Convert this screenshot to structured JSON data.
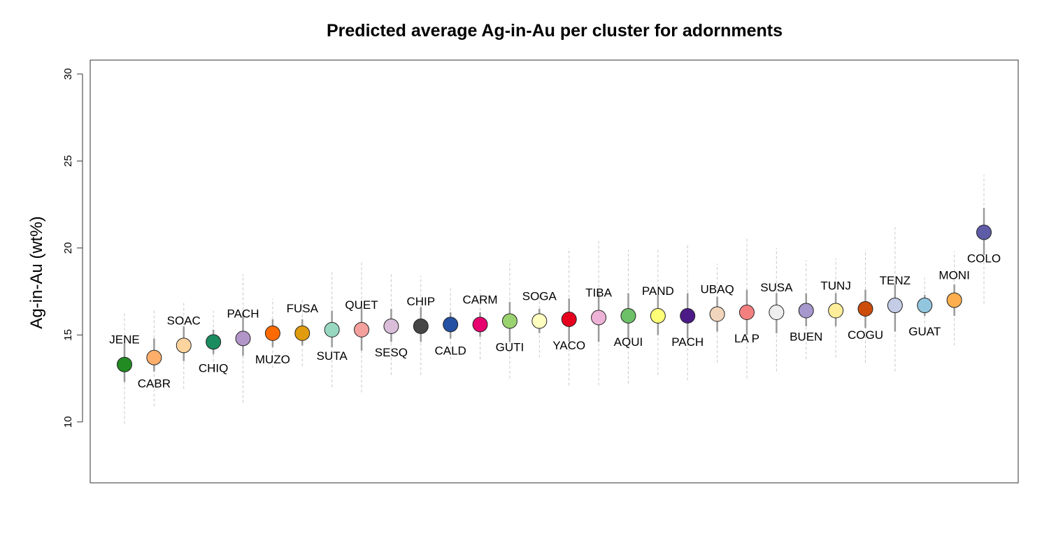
{
  "chart_data": {
    "type": "scatter",
    "title": "Predicted average Ag-in-Au per cluster for adornments",
    "ylabel": "Ag-in-Au (wt%)",
    "xlabel": "",
    "ylim": [
      6.5,
      30.8
    ],
    "yticks": [
      10,
      15,
      20,
      25,
      30
    ],
    "grid": false,
    "legend": "none",
    "points": [
      {
        "label": "JENE",
        "value": 13.3,
        "inner": [
          12.3,
          14.5
        ],
        "outer": [
          9.9,
          16.3
        ],
        "color": "#228B22",
        "label_pos": "above"
      },
      {
        "label": "CABR",
        "value": 13.7,
        "inner": [
          12.9,
          14.8
        ],
        "outer": [
          10.9,
          16.4
        ],
        "color": "#FDAE6B",
        "label_pos": "below"
      },
      {
        "label": "SOAC",
        "value": 14.4,
        "inner": [
          13.5,
          15.5
        ],
        "outer": [
          11.9,
          16.9
        ],
        "color": "#FDD49E",
        "label_pos": "above"
      },
      {
        "label": "CHIQ",
        "value": 14.6,
        "inner": [
          13.9,
          15.3
        ],
        "outer": [
          12.9,
          16.4
        ],
        "color": "#1B8C5F",
        "label_pos": "below"
      },
      {
        "label": "PACH",
        "value": 14.8,
        "inner": [
          13.8,
          16.3
        ],
        "outer": [
          11.1,
          18.5
        ],
        "color": "#B295C8",
        "label_pos": "above"
      },
      {
        "label": "MUZO",
        "value": 15.1,
        "inner": [
          14.3,
          15.9
        ],
        "outer": [
          13.1,
          17.1
        ],
        "color": "#FF6A00",
        "label_pos": "below"
      },
      {
        "label": "FUSA",
        "value": 15.1,
        "inner": [
          14.4,
          15.9
        ],
        "outer": [
          13.2,
          17.1
        ],
        "color": "#E09B0E",
        "label_pos": "above"
      },
      {
        "label": "SUTA",
        "value": 15.3,
        "inner": [
          14.3,
          16.4
        ],
        "outer": [
          12.0,
          18.6
        ],
        "color": "#98D8C0",
        "label_pos": "below"
      },
      {
        "label": "QUET",
        "value": 15.3,
        "inner": [
          14.1,
          16.6
        ],
        "outer": [
          11.7,
          19.2
        ],
        "color": "#F4A09C",
        "label_pos": "above"
      },
      {
        "label": "SESQ",
        "value": 15.5,
        "inner": [
          14.6,
          16.5
        ],
        "outer": [
          12.7,
          18.6
        ],
        "color": "#D9BDD9",
        "label_pos": "below"
      },
      {
        "label": "CHIP",
        "value": 15.5,
        "inner": [
          14.6,
          16.6
        ],
        "outer": [
          12.7,
          18.4
        ],
        "color": "#464646",
        "label_pos": "above"
      },
      {
        "label": "CALD",
        "value": 15.6,
        "inner": [
          14.8,
          16.3
        ],
        "outer": [
          13.6,
          17.8
        ],
        "color": "#2451A3",
        "label_pos": "below"
      },
      {
        "label": "CARM",
        "value": 15.6,
        "inner": [
          14.9,
          16.3
        ],
        "outer": [
          13.6,
          17.6
        ],
        "color": "#E8006E",
        "label_pos": "above"
      },
      {
        "label": "GUTI",
        "value": 15.8,
        "inner": [
          14.6,
          16.9
        ],
        "outer": [
          12.5,
          19.3
        ],
        "color": "#9AD270",
        "label_pos": "below"
      },
      {
        "label": "SOGA",
        "value": 15.8,
        "inner": [
          15.1,
          16.5
        ],
        "outer": [
          13.7,
          17.3
        ],
        "color": "#FFFFC0",
        "label_pos": "above"
      },
      {
        "label": "YACO",
        "value": 15.9,
        "inner": [
          14.6,
          17.1
        ],
        "outer": [
          12.1,
          20.0
        ],
        "color": "#E6001E",
        "label_pos": "below"
      },
      {
        "label": "TIBA",
        "value": 16.0,
        "inner": [
          14.6,
          17.4
        ],
        "outer": [
          12.1,
          20.4
        ],
        "color": "#EDB2D6",
        "label_pos": "above"
      },
      {
        "label": "AQUI",
        "value": 16.1,
        "inner": [
          14.8,
          17.4
        ],
        "outer": [
          12.2,
          19.9
        ],
        "color": "#6DC067",
        "label_pos": "below"
      },
      {
        "label": "PAND",
        "value": 16.1,
        "inner": [
          15.0,
          17.3
        ],
        "outer": [
          12.7,
          19.9
        ],
        "color": "#FFFF77",
        "label_pos": "above"
      },
      {
        "label": "PACH",
        "value": 16.1,
        "inner": [
          14.8,
          17.4
        ],
        "outer": [
          12.4,
          20.2
        ],
        "color": "#4B1A87",
        "label_pos": "below"
      },
      {
        "label": "UBAQ",
        "value": 16.2,
        "inner": [
          15.2,
          17.2
        ],
        "outer": [
          13.4,
          19.1
        ],
        "color": "#F2D6BC",
        "label_pos": "above"
      },
      {
        "label": "LA P",
        "value": 16.3,
        "inner": [
          15.0,
          17.6
        ],
        "outer": [
          12.5,
          20.6
        ],
        "color": "#F47F7F",
        "label_pos": "below"
      },
      {
        "label": "SUSA",
        "value": 16.3,
        "inner": [
          15.1,
          17.4
        ],
        "outer": [
          12.9,
          20.0
        ],
        "color": "#EEEEEE",
        "label_pos": "above"
      },
      {
        "label": "BUEN",
        "value": 16.4,
        "inner": [
          15.5,
          17.4
        ],
        "outer": [
          13.6,
          19.3
        ],
        "color": "#A697CD",
        "label_pos": "below"
      },
      {
        "label": "TUNJ",
        "value": 16.4,
        "inner": [
          15.5,
          17.4
        ],
        "outer": [
          13.7,
          19.4
        ],
        "color": "#FFEE99",
        "label_pos": "above"
      },
      {
        "label": "COGU",
        "value": 16.5,
        "inner": [
          15.4,
          17.6
        ],
        "outer": [
          13.4,
          19.9
        ],
        "color": "#CC4C0C",
        "label_pos": "below"
      },
      {
        "label": "TENZ",
        "value": 16.7,
        "inner": [
          15.2,
          17.9
        ],
        "outer": [
          12.9,
          21.2
        ],
        "color": "#C4CCE6",
        "label_pos": "above"
      },
      {
        "label": "GUAT",
        "value": 16.7,
        "inner": [
          16.1,
          17.3
        ],
        "outer": [
          15.1,
          18.3
        ],
        "color": "#92C5DE",
        "label_pos": "below"
      },
      {
        "label": "MONI",
        "value": 17.0,
        "inner": [
          16.1,
          17.9
        ],
        "outer": [
          14.4,
          19.8
        ],
        "color": "#FDAE4E",
        "label_pos": "above"
      },
      {
        "label": "COLO",
        "value": 20.9,
        "inner": [
          19.6,
          22.3
        ],
        "outer": [
          16.8,
          24.2
        ],
        "color": "#5E5CA6",
        "label_pos": "below"
      }
    ]
  }
}
